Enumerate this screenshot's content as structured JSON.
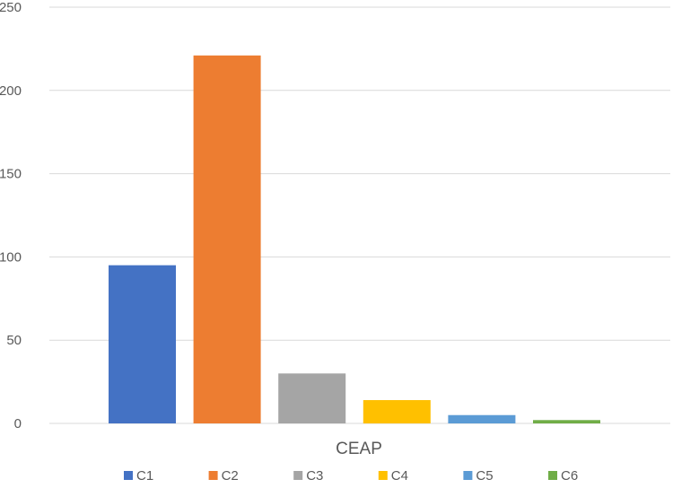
{
  "chart_data": {
    "type": "bar",
    "title": "",
    "xlabel": "CEAP",
    "ylabel": "",
    "ylim": [
      0,
      250
    ],
    "y_ticks": [
      0,
      50,
      100,
      150,
      200,
      250
    ],
    "grid": true,
    "legend_position": "bottom",
    "series": [
      {
        "name": "C1",
        "values": [
          95
        ],
        "color": "#4472C4"
      },
      {
        "name": "C2",
        "values": [
          221
        ],
        "color": "#ED7D31"
      },
      {
        "name": "C3",
        "values": [
          30
        ],
        "color": "#A5A5A5"
      },
      {
        "name": "C4",
        "values": [
          14
        ],
        "color": "#FFC000"
      },
      {
        "name": "C5",
        "values": [
          5
        ],
        "color": "#5B9BD5"
      },
      {
        "name": "C6",
        "values": [
          2
        ],
        "color": "#70AD47"
      }
    ]
  }
}
